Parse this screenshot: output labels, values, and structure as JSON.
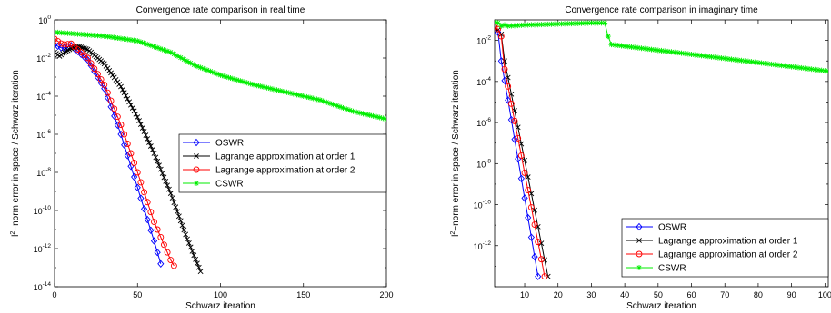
{
  "chart_data": [
    {
      "type": "line",
      "title": "Convergence rate comparison in real time",
      "xlabel": "Schwarz iteration",
      "ylabel": "l²−norm error in space / Schwarz iteration",
      "ylabel_parts": [
        "l",
        "2",
        "−norm error in space / Schwarz iteration"
      ],
      "xscale": "linear",
      "yscale": "log",
      "xlim": [
        0,
        200
      ],
      "ylim_exp": [
        -14,
        0
      ],
      "x_ticks": [
        0,
        50,
        100,
        150,
        200
      ],
      "x_tick_labels": [
        "0",
        "50",
        "100",
        "150",
        "200"
      ],
      "y_tick_exponents": [
        -14,
        -12,
        -10,
        -8,
        -6,
        -4,
        -2,
        0
      ],
      "y_tick_base": "10",
      "y_tick_labels": [
        "-14",
        "-12",
        "-10",
        "-8",
        "-6",
        "-4",
        "-2",
        "0"
      ],
      "grid": false,
      "legend_position": "center-right",
      "series": [
        {
          "name": "OSWR",
          "color": "#0000ff",
          "marker": "diamond",
          "step": 2,
          "anchors": [
            [
              0,
              -1.3
            ],
            [
              5,
              -1.5
            ],
            [
              10,
              -1.35
            ],
            [
              20,
              -2.1
            ],
            [
              30,
              -3.6
            ],
            [
              40,
              -6.0
            ],
            [
              50,
              -8.8
            ],
            [
              60,
              -11.6
            ],
            [
              65,
              -13.1
            ]
          ]
        },
        {
          "name": "Lagrange approximation at order 1",
          "color": "#000000",
          "marker": "x",
          "step": 1,
          "anchors": [
            [
              0,
              -1.7
            ],
            [
              3,
              -1.9
            ],
            [
              6,
              -1.7
            ],
            [
              10,
              -1.5
            ],
            [
              15,
              -1.4
            ],
            [
              20,
              -1.55
            ],
            [
              30,
              -2.3
            ],
            [
              40,
              -3.5
            ],
            [
              50,
              -5.1
            ],
            [
              60,
              -7.0
            ],
            [
              70,
              -9.1
            ],
            [
              80,
              -11.5
            ],
            [
              88,
              -13.2
            ]
          ]
        },
        {
          "name": "Lagrange approximation at order 2",
          "color": "#ff0000",
          "marker": "circle",
          "step": 2,
          "anchors": [
            [
              0,
              -1.0
            ],
            [
              5,
              -1.3
            ],
            [
              10,
              -1.25
            ],
            [
              20,
              -2.0
            ],
            [
              30,
              -3.4
            ],
            [
              40,
              -5.5
            ],
            [
              50,
              -8.0
            ],
            [
              60,
              -10.6
            ],
            [
              70,
              -12.6
            ],
            [
              72,
              -12.9
            ]
          ]
        },
        {
          "name": "CSWR",
          "color": "#00ee00",
          "marker": "star",
          "step": 2,
          "anchors": [
            [
              0,
              -0.65
            ],
            [
              30,
              -0.85
            ],
            [
              50,
              -1.1
            ],
            [
              70,
              -1.7
            ],
            [
              85,
              -2.4
            ],
            [
              100,
              -2.9
            ],
            [
              120,
              -3.4
            ],
            [
              140,
              -3.8
            ],
            [
              160,
              -4.2
            ],
            [
              180,
              -4.8
            ],
            [
              200,
              -5.2
            ]
          ]
        }
      ]
    },
    {
      "type": "line",
      "title": "Convergence rate comparison in imaginary time",
      "xlabel": "Schwarz iteration",
      "ylabel": "l²−norm error in space / Schwarz iteration",
      "ylabel_parts": [
        "l",
        "2",
        "−norm error in space / Schwarz iteration"
      ],
      "xscale": "linear",
      "yscale": "log",
      "xlim": [
        1,
        101
      ],
      "ylim_exp": [
        -14,
        -1
      ],
      "x_ticks": [
        10,
        20,
        30,
        40,
        50,
        60,
        70,
        80,
        90,
        100
      ],
      "x_tick_labels": [
        "10",
        "20",
        "30",
        "40",
        "50",
        "60",
        "70",
        "80",
        "90",
        "100"
      ],
      "y_tick_exponents": [
        -12,
        -10,
        -8,
        -6,
        -4,
        -2
      ],
      "y_tick_base": "10",
      "y_tick_labels": [
        "-12",
        "-10",
        "-8",
        "-6",
        "-4",
        "-2"
      ],
      "grid": false,
      "legend_position": "bottom-right",
      "series": [
        {
          "name": "OSWR",
          "color": "#0000ff",
          "marker": "diamond",
          "step": 1,
          "anchors": [
            [
              1,
              -1.5
            ],
            [
              2,
              -1.6
            ],
            [
              3,
              -3.0
            ],
            [
              14,
              -13.5
            ]
          ]
        },
        {
          "name": "Lagrange approximation at order 1",
          "color": "#000000",
          "marker": "x",
          "step": 1,
          "anchors": [
            [
              1,
              -1.4
            ],
            [
              2,
              -1.5
            ],
            [
              3,
              -1.7
            ],
            [
              4,
              -3.0
            ],
            [
              17,
              -13.5
            ]
          ]
        },
        {
          "name": "Lagrange approximation at order 2",
          "color": "#ff0000",
          "marker": "circle",
          "step": 1,
          "anchors": [
            [
              1,
              -1.35
            ],
            [
              2,
              -1.45
            ],
            [
              3,
              -1.8
            ],
            [
              4,
              -3.4
            ],
            [
              16,
              -13.5
            ]
          ]
        },
        {
          "name": "CSWR",
          "color": "#00ee00",
          "marker": "star",
          "step": 1,
          "anchors": [
            [
              1,
              -1.1
            ],
            [
              2,
              -1.15
            ],
            [
              3,
              -1.3
            ],
            [
              4,
              -1.25
            ],
            [
              5,
              -1.3
            ],
            [
              10,
              -1.25
            ],
            [
              20,
              -1.2
            ],
            [
              30,
              -1.15
            ],
            [
              34,
              -1.15
            ],
            [
              35,
              -1.8
            ],
            [
              36,
              -2.2
            ],
            [
              101,
              -3.5
            ]
          ]
        }
      ]
    }
  ]
}
